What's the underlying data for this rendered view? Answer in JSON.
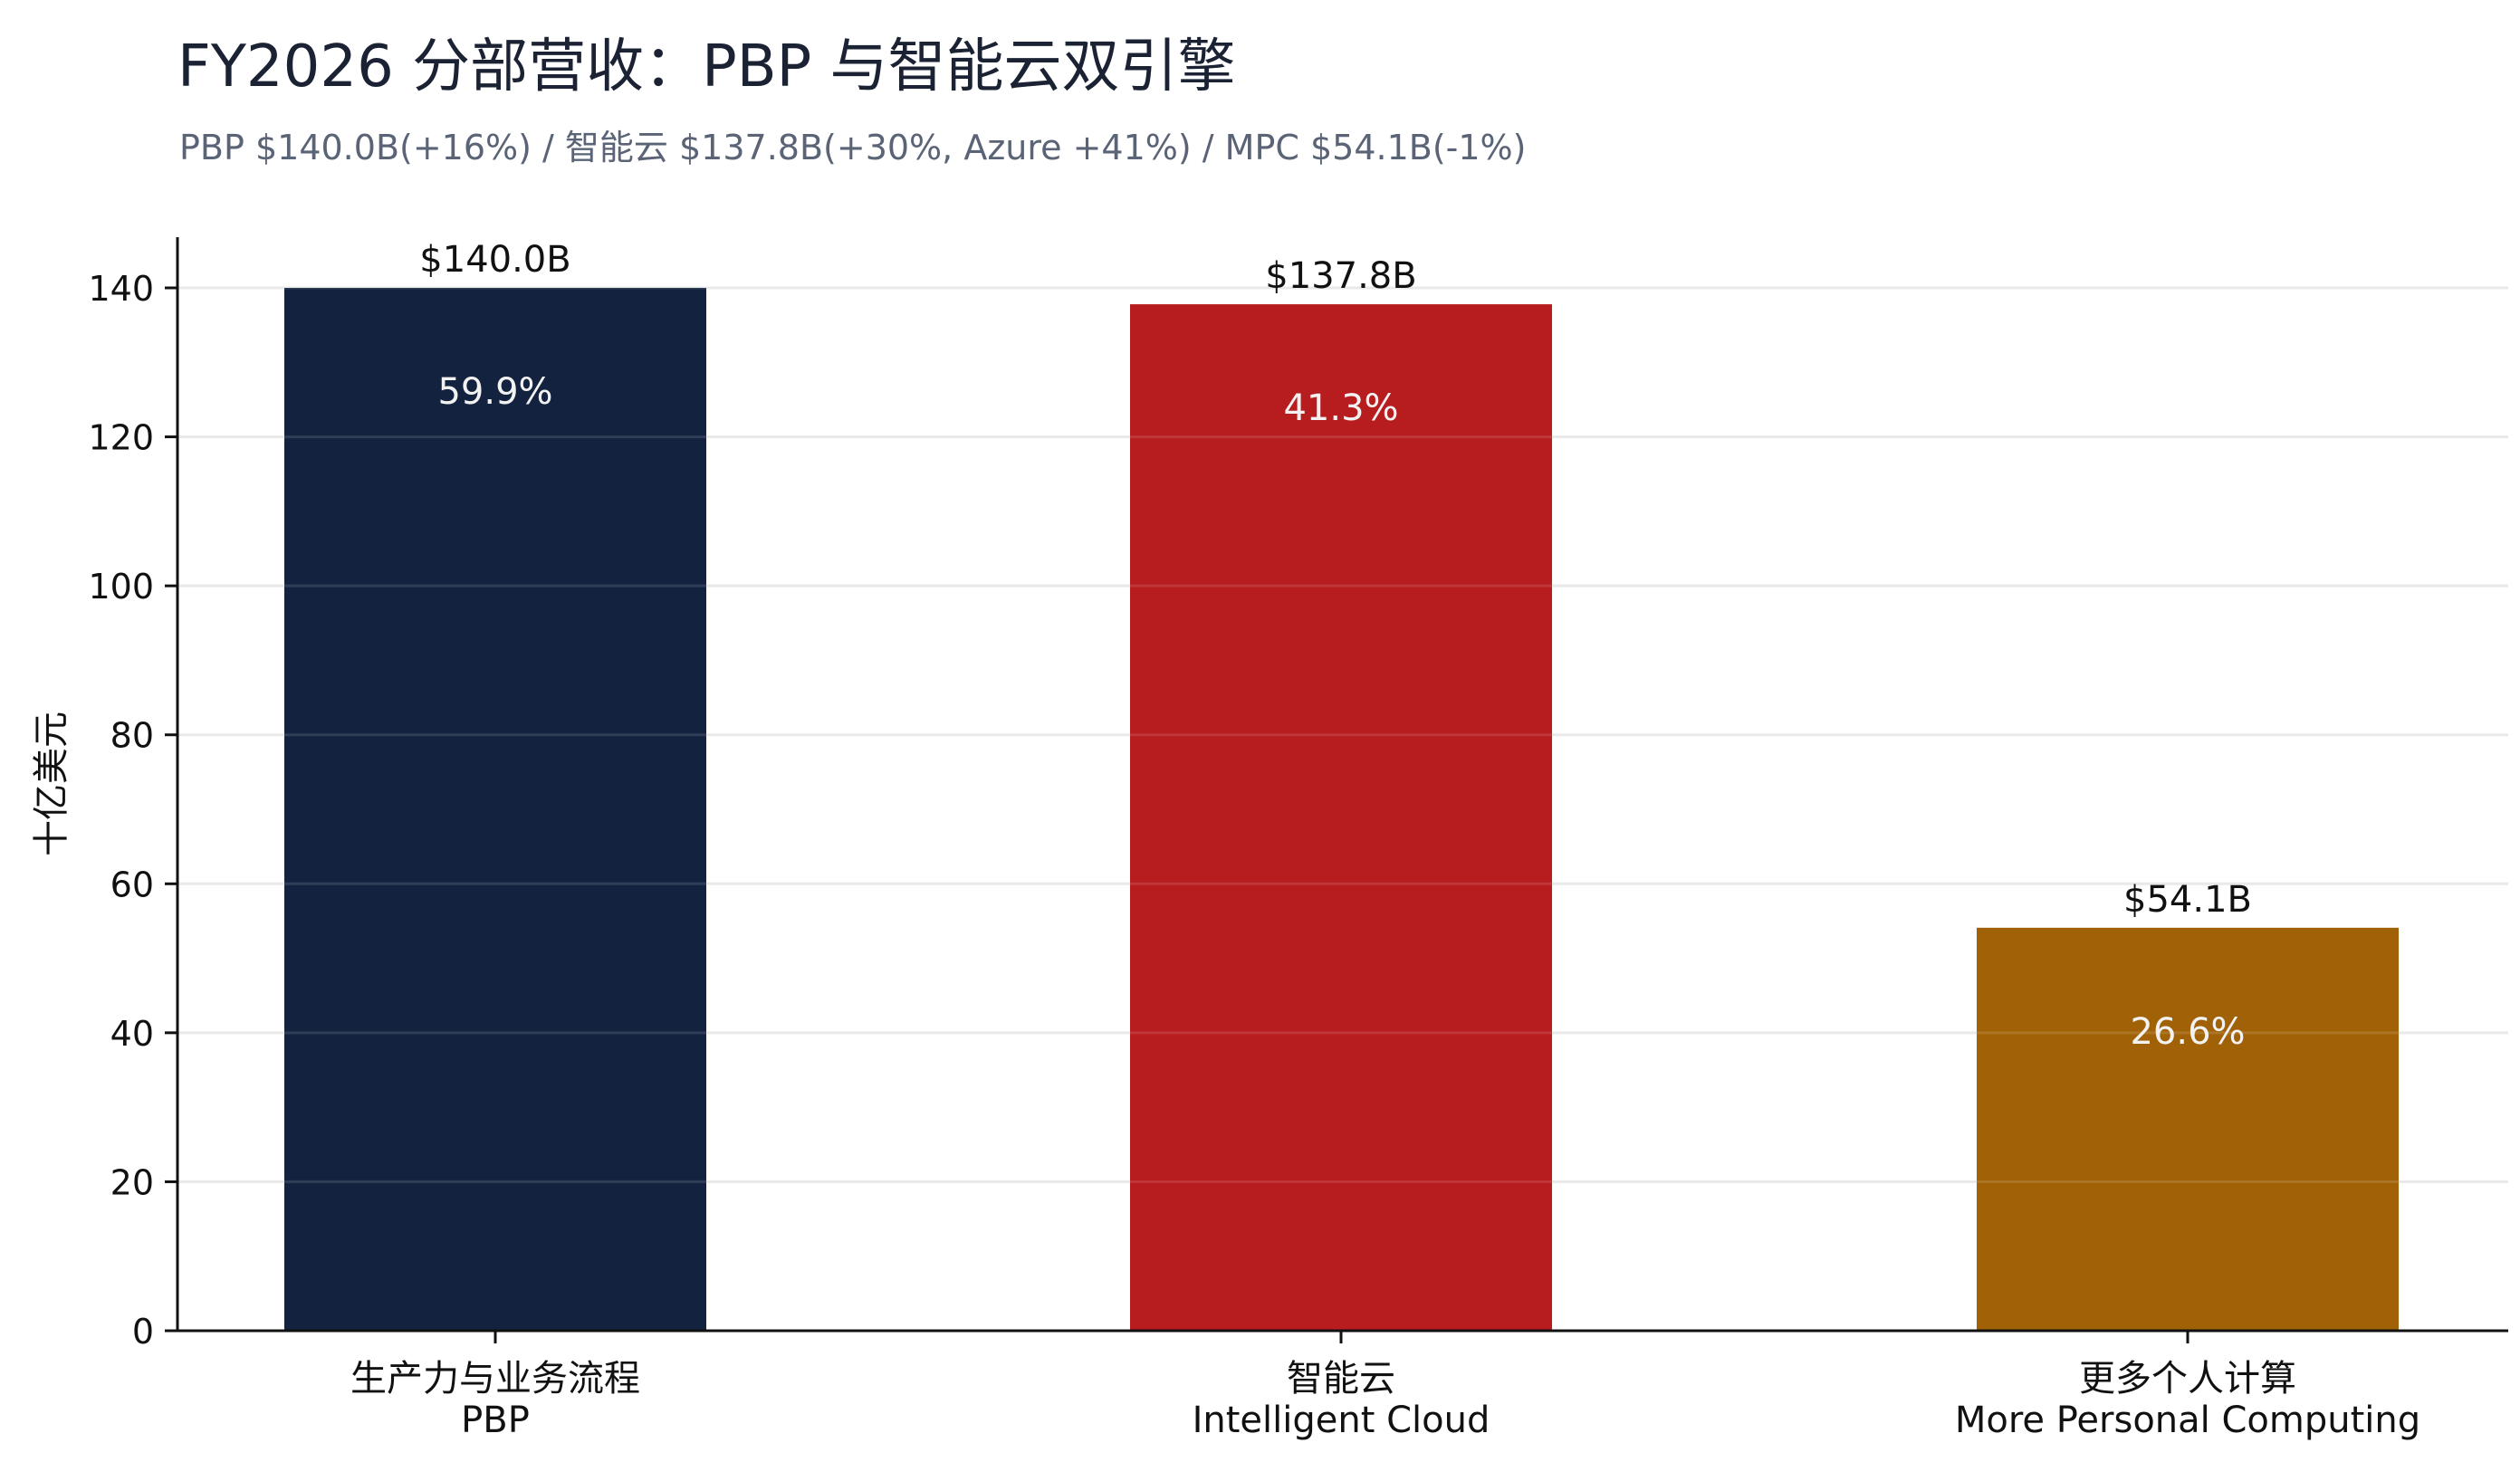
{
  "header": {
    "title": "FY2026 分部营收：PBP 与智能云双引擎",
    "subtitle": "PBP $140.0B(+16%) / 智能云 $137.8B(+30%, Azure +41%) / MPC $54.1B(-1%)"
  },
  "chart_data": {
    "type": "bar",
    "title": "FY2026 分部营收：PBP 与智能云双引擎",
    "subtitle": "PBP $140.0B(+16%) / 智能云 $137.8B(+30%, Azure +41%) / MPC $54.1B(-1%)",
    "ylabel": "十亿美元",
    "ylim": [
      0,
      147
    ],
    "yticks": [
      0,
      20,
      40,
      60,
      80,
      100,
      120,
      140
    ],
    "grid": true,
    "categories": [
      {
        "zh": "生产力与业务流程",
        "en": "PBP"
      },
      {
        "zh": "智能云",
        "en": "Intelligent Cloud"
      },
      {
        "zh": "更多个人计算",
        "en": "More Personal Computing"
      }
    ],
    "values": [
      140.0,
      137.8,
      54.1
    ],
    "value_labels": [
      "$140.0B",
      "$137.8B",
      "$54.1B"
    ],
    "inner_labels": [
      "59.9%",
      "41.3%",
      "26.6%"
    ],
    "colors": [
      "#13233f",
      "#b71c1e",
      "#a16207"
    ]
  }
}
